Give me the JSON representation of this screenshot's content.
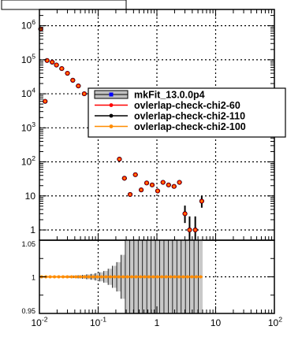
{
  "chart_data": [
    {
      "type": "scatter",
      "panel": "main",
      "x_scale": "log",
      "y_scale": "log",
      "xlim": [
        0.01,
        100
      ],
      "ylim": [
        0.5,
        3000000
      ],
      "grid": true,
      "legend_placement": "right",
      "y_tick_labels": [
        {
          "value": 1,
          "label": "1"
        },
        {
          "value": 10,
          "label": "10"
        },
        {
          "value": 100,
          "label": "10^2"
        },
        {
          "value": 1000,
          "label": "10^3"
        },
        {
          "value": 10000,
          "label": "10^4"
        },
        {
          "value": 100000,
          "label": "10^5"
        },
        {
          "value": 1000000,
          "label": "10^6"
        }
      ],
      "series": [
        {
          "name": "mkFit_13.0.0p4",
          "color": "#0000ff"
        },
        {
          "name": "ovlerlap-check-chi2-60",
          "color": "#ff0000"
        },
        {
          "name": "ovlerlap-check-chi2-110",
          "color": "#000000"
        },
        {
          "name": "ovlerlap-check-chi2-100",
          "color": "#ff8c00"
        }
      ],
      "points": [
        {
          "x": 0.0105,
          "y": 800000
        },
        {
          "x": 0.0125,
          "y": 6000
        },
        {
          "x": 0.0135,
          "y": 95000
        },
        {
          "x": 0.0165,
          "y": 85000
        },
        {
          "x": 0.0195,
          "y": 70000
        },
        {
          "x": 0.024,
          "y": 55000
        },
        {
          "x": 0.03,
          "y": 40000
        },
        {
          "x": 0.037,
          "y": 25000
        },
        {
          "x": 0.046,
          "y": 17000
        },
        {
          "x": 0.058,
          "y": 10000
        },
        {
          "x": 0.23,
          "y": 120
        },
        {
          "x": 0.28,
          "y": 33
        },
        {
          "x": 0.35,
          "y": 11
        },
        {
          "x": 0.43,
          "y": 42
        },
        {
          "x": 0.54,
          "y": 15
        },
        {
          "x": 0.67,
          "y": 24
        },
        {
          "x": 0.83,
          "y": 21
        },
        {
          "x": 1.03,
          "y": 14
        },
        {
          "x": 1.27,
          "y": 25
        },
        {
          "x": 1.58,
          "y": 21
        },
        {
          "x": 1.96,
          "y": 19
        },
        {
          "x": 2.42,
          "y": 25
        },
        {
          "x": 3.0,
          "y": 3,
          "err_low": 1.6,
          "err_high": 5.2
        },
        {
          "x": 3.6,
          "y": 1,
          "err_low": 0.5,
          "err_high": 2.5
        },
        {
          "x": 4.5,
          "y": 1,
          "err_low": 0.5,
          "err_high": 2.5
        },
        {
          "x": 5.8,
          "y": 7,
          "err_low": 4.5,
          "err_high": 10
        }
      ]
    },
    {
      "type": "line",
      "panel": "ratio",
      "x_scale": "log",
      "xlim": [
        0.01,
        100
      ],
      "ylim": [
        0.95,
        1.05
      ],
      "grid": true,
      "y_tick_labels": [
        {
          "value": 0.95,
          "label": "0.95"
        },
        {
          "value": 1,
          "label": "1"
        },
        {
          "value": 1.05,
          "label": "1.05"
        }
      ],
      "x_tick_labels": [
        {
          "value": 0.01,
          "label": "10^-2"
        },
        {
          "value": 0.1,
          "label": "10^-1"
        },
        {
          "value": 1,
          "label": "1"
        },
        {
          "value": 10,
          "label": "10"
        },
        {
          "value": 100,
          "label": "10^2"
        }
      ],
      "ratio_value": 1,
      "ratio_color": "#ff8c00",
      "x_start": 0.01,
      "x_end": 6.0,
      "band_half_width": [
        0.0005,
        0.0005,
        0.0006,
        0.0007,
        0.0008,
        0.001,
        0.0012,
        0.0014,
        0.0017,
        0.0021,
        0.0026,
        0.0033,
        0.004,
        0.005,
        0.0062,
        0.008,
        0.011,
        0.015,
        0.02,
        0.03,
        0.05,
        0.05,
        0.05,
        0.05,
        0.05,
        0.05,
        0.05,
        0.05,
        0.05,
        0.05,
        0.05,
        0.05,
        0.05,
        0.05,
        0.05,
        0.05,
        0.05,
        0.05
      ]
    }
  ],
  "top_frame": {
    "fill": "#ffffff"
  }
}
